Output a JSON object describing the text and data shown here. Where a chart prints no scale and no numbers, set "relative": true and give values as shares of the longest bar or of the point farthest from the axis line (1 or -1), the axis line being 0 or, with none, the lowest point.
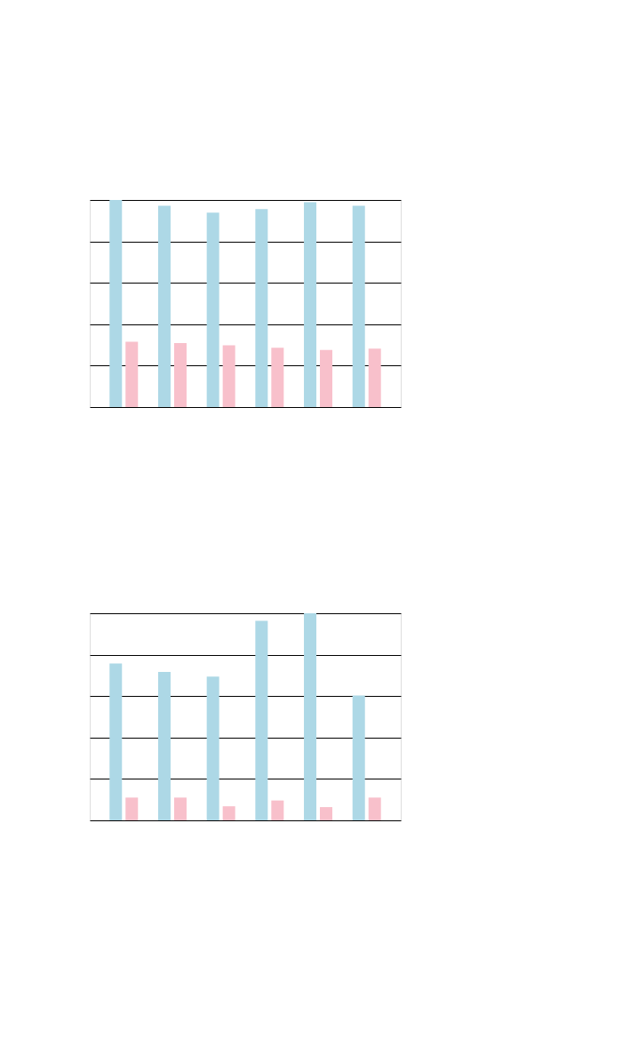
{
  "chart_data": [
    {
      "type": "bar",
      "relative": true,
      "categories": [
        null,
        null,
        null,
        null,
        null,
        null
      ],
      "grid": "y",
      "series": [
        {
          "color": "#add8e6",
          "values": [
            1,
            0.972,
            0.939,
            0.956,
            0.989,
            0.972
          ]
        },
        {
          "color": "#f8c0cb",
          "values": [
            0.315,
            0.309,
            0.298,
            0.287,
            0.276,
            0.282
          ]
        }
      ]
    },
    {
      "type": "bar",
      "relative": true,
      "categories": [
        null,
        null,
        null,
        null,
        null,
        null
      ],
      "grid": "y",
      "series": [
        {
          "color": "#add8e6",
          "values": [
            0.758,
            0.717,
            0.694,
            0.963,
            1,
            0.603
          ]
        },
        {
          "color": "#f8c0cb",
          "values": [
            0.11,
            0.11,
            0.068,
            0.096,
            0.064,
            0.11
          ]
        }
      ]
    }
  ]
}
